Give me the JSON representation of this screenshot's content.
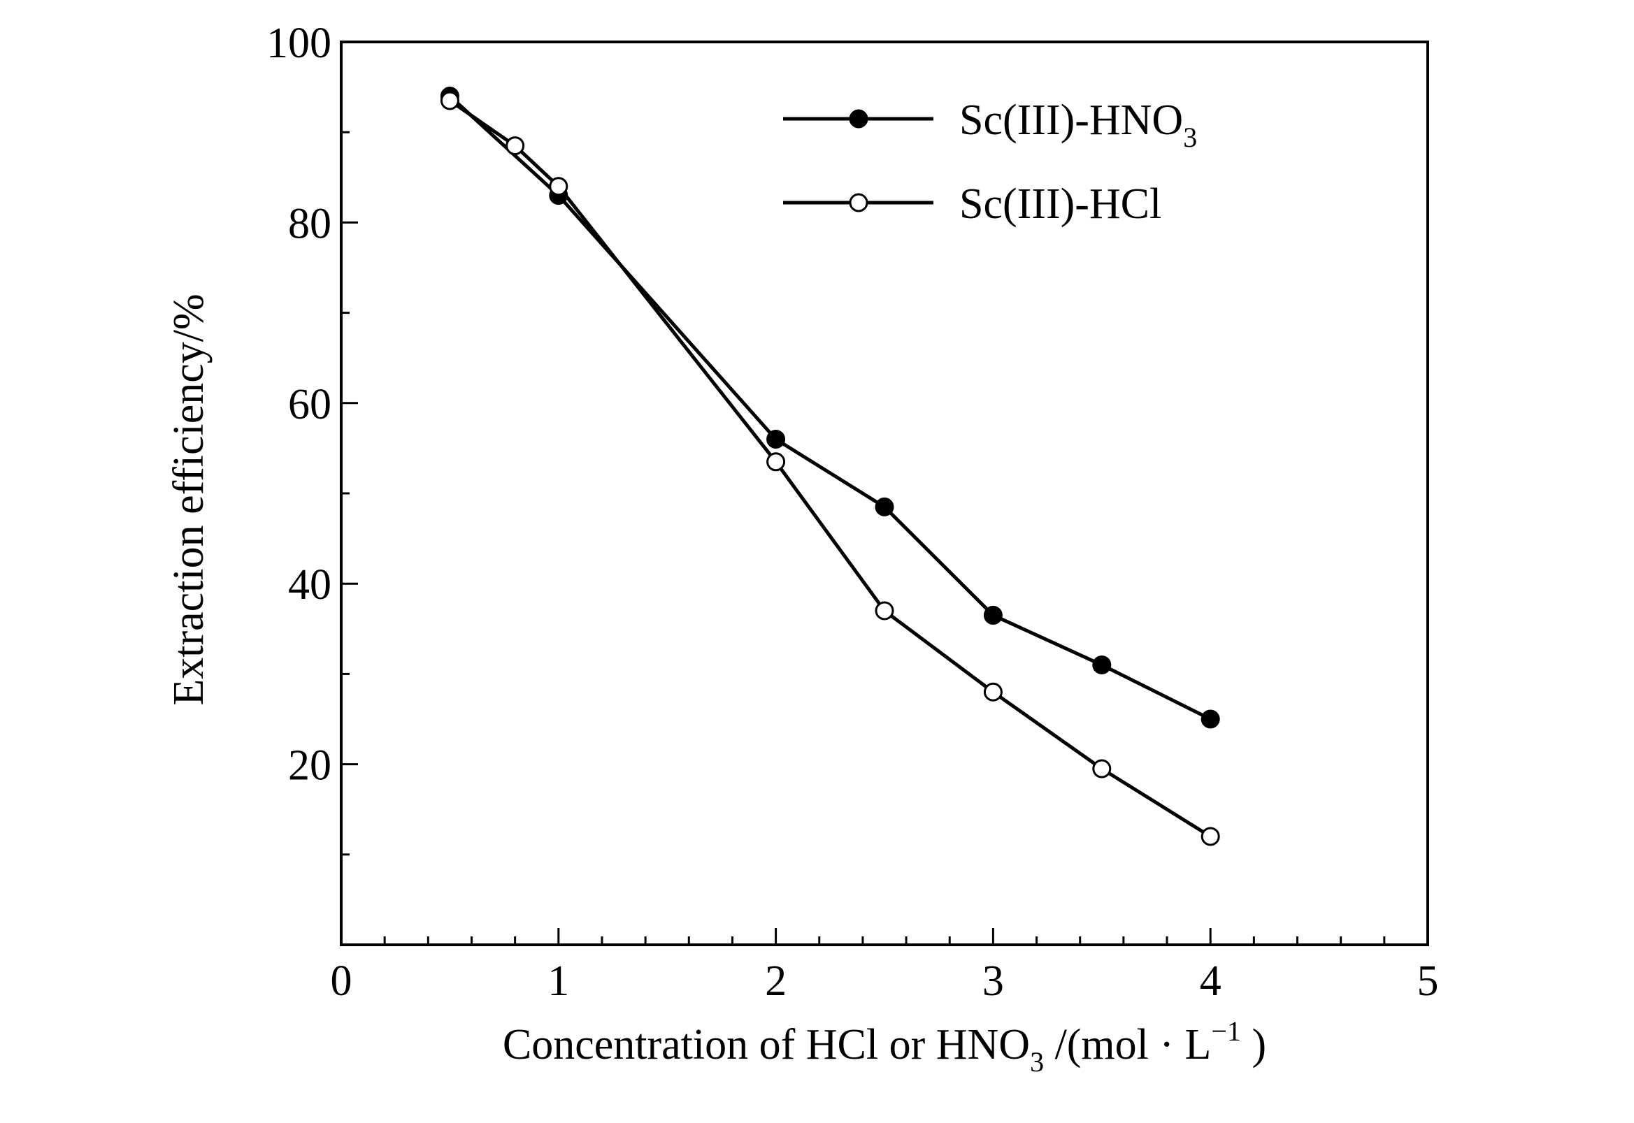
{
  "chart_data": {
    "type": "line",
    "title": "",
    "xlabel": {
      "main": "Concentration of HCl or HNO",
      "sub": "3",
      "unit_open": " /(mol · L",
      "sup": "−1",
      "unit_close": " )"
    },
    "ylabel": "Extraction efficiency/%",
    "xlim": [
      0,
      5
    ],
    "ylim": [
      0,
      100
    ],
    "x_ticks": [
      0,
      1,
      2,
      3,
      4,
      5
    ],
    "x_tick_labels": [
      "0",
      "1",
      "2",
      "3",
      "4",
      "5"
    ],
    "y_ticks": [
      20,
      40,
      60,
      80,
      100
    ],
    "y_tick_labels": [
      "20",
      "40",
      "60",
      "80",
      "100"
    ],
    "x_minor_step": 0.2,
    "y_minor_step": 10,
    "grid": false,
    "legend_position": "top-right",
    "series": [
      {
        "name": "Sc(III)-HNO",
        "name_sub": "3",
        "marker": "filled-circle",
        "color": "#000000",
        "x": [
          0.5,
          1.0,
          2.0,
          2.5,
          3.0,
          3.5,
          4.0
        ],
        "y": [
          94,
          83,
          56,
          48.5,
          36.5,
          31,
          25
        ]
      },
      {
        "name": "Sc(III)-HCl",
        "name_sub": "",
        "marker": "open-circle",
        "color": "#000000",
        "x": [
          0.5,
          0.8,
          1.0,
          2.0,
          2.5,
          3.0,
          3.5,
          4.0
        ],
        "y": [
          93.5,
          88.5,
          84,
          53.5,
          37,
          28,
          19.5,
          12
        ]
      }
    ]
  }
}
